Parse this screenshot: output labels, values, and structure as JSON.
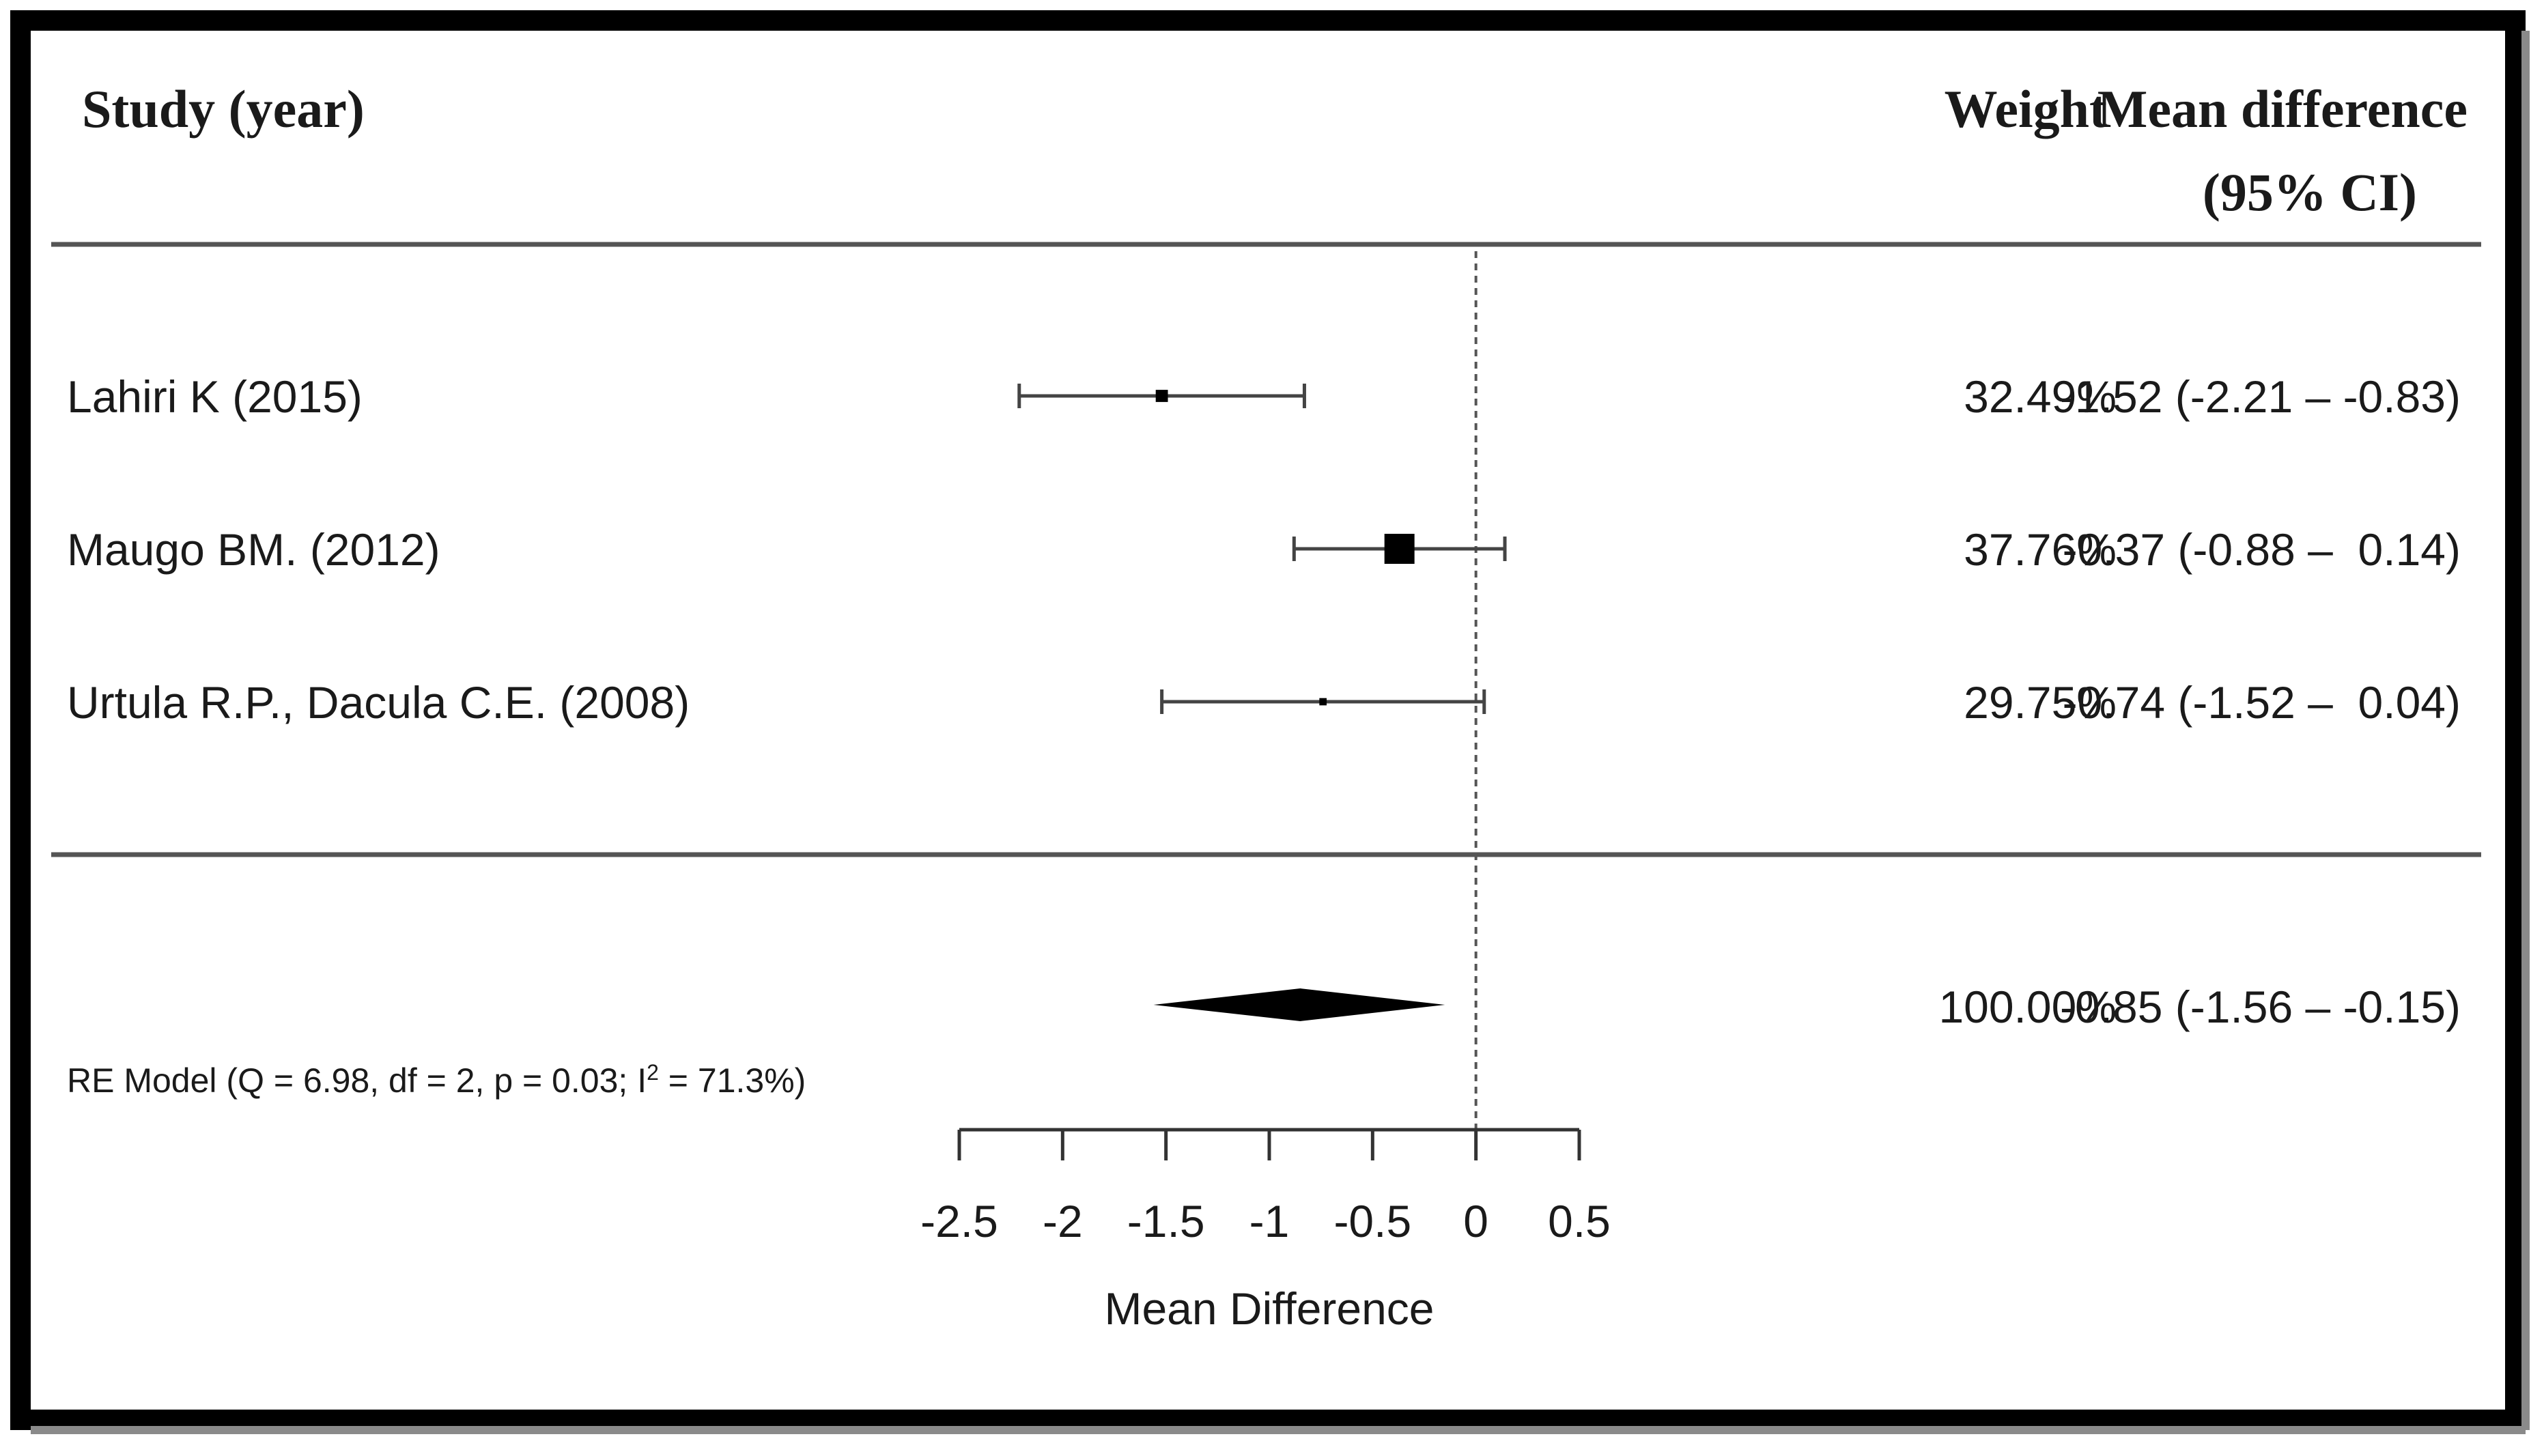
{
  "header": {
    "study": "Study (year)",
    "weight": "Weight",
    "md_line1": "Mean difference",
    "md_line2": "(95% CI)"
  },
  "chart_data": {
    "type": "forest",
    "studies": [
      {
        "label": "Lahiri K (2015)",
        "weight": "32.49%",
        "estimate": -1.52,
        "lower": -2.21,
        "upper": -0.83,
        "ci_text": "-1.52 (-2.21 – -0.83)"
      },
      {
        "label": "Maugo BM. (2012)",
        "weight": "37.76%",
        "estimate": -0.37,
        "lower": -0.88,
        "upper": 0.14,
        "ci_text": "-0.37 (-0.88 –  0.14)"
      },
      {
        "label": "Urtula R.P., Dacula C.E. (2008)",
        "weight": "29.75%",
        "estimate": -0.74,
        "lower": -1.52,
        "upper": 0.04,
        "ci_text": "-0.74 (-1.52 –  0.04)"
      }
    ],
    "summary": {
      "label": "RE Model (Q = 6.98, df = 2, p = 0.03; I² = 71.3%)",
      "label_main": "RE Model (Q = 6.98, df = 2, p = 0.03; I",
      "label_sup": "2",
      "label_end": " = 71.3%)",
      "weight": "100.00%",
      "estimate": -0.85,
      "lower": -1.56,
      "upper": -0.15,
      "ci_text": "-0.85 (-1.56 – -0.15)"
    },
    "x_ticks": [
      -2.5,
      -2,
      -1.5,
      -1,
      -0.5,
      0,
      0.5
    ],
    "x_tick_labels": [
      "-2.5",
      "-2",
      "-1.5",
      "-1",
      "-0.5",
      "0",
      "0.5"
    ],
    "xlim": [
      -2.5,
      0.5
    ],
    "xlabel": "Mean Difference",
    "reference_line": 0
  }
}
